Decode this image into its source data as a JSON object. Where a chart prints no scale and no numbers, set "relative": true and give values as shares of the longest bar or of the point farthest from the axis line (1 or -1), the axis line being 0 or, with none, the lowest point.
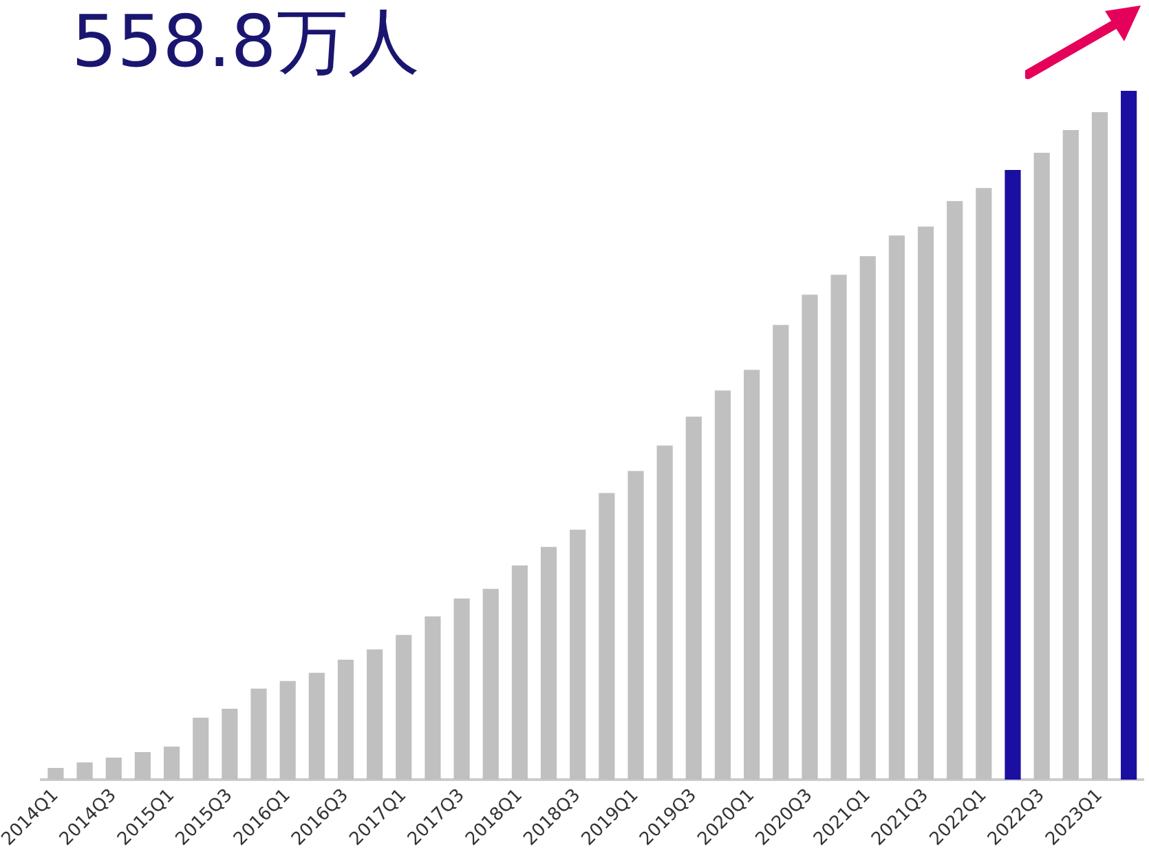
{
  "chart_data": {
    "type": "bar",
    "title": "558.8万人",
    "relative": true,
    "categories": [
      "2014Q1",
      null,
      "2014Q3",
      null,
      "2015Q1",
      null,
      "2015Q3",
      null,
      "2016Q1",
      null,
      "2016Q3",
      null,
      "2017Q1",
      null,
      "2017Q3",
      null,
      "2018Q1",
      null,
      "2018Q3",
      null,
      "2019Q1",
      null,
      "2019Q3",
      null,
      "2020Q1",
      null,
      "2020Q3",
      null,
      "2021Q1",
      null,
      "2021Q3",
      null,
      "2022Q1",
      null,
      "2022Q3",
      null,
      "2023Q1",
      null
    ],
    "values": [
      0.017,
      0.025,
      0.032,
      0.04,
      0.048,
      0.09,
      0.103,
      0.132,
      0.143,
      0.155,
      0.174,
      0.189,
      0.21,
      0.237,
      0.263,
      0.277,
      0.311,
      0.338,
      0.363,
      0.416,
      0.448,
      0.485,
      0.527,
      0.565,
      0.595,
      0.66,
      0.704,
      0.733,
      0.76,
      0.79,
      0.803,
      0.84,
      0.859,
      0.885,
      0.91,
      0.943,
      0.969,
      1
    ],
    "colors": [
      "#c0c0c0",
      "#c0c0c0",
      "#c0c0c0",
      "#c0c0c0",
      "#c0c0c0",
      "#c0c0c0",
      "#c0c0c0",
      "#c0c0c0",
      "#c0c0c0",
      "#c0c0c0",
      "#c0c0c0",
      "#c0c0c0",
      "#c0c0c0",
      "#c0c0c0",
      "#c0c0c0",
      "#c0c0c0",
      "#c0c0c0",
      "#c0c0c0",
      "#c0c0c0",
      "#c0c0c0",
      "#c0c0c0",
      "#c0c0c0",
      "#c0c0c0",
      "#c0c0c0",
      "#c0c0c0",
      "#c0c0c0",
      "#c0c0c0",
      "#c0c0c0",
      "#c0c0c0",
      "#c0c0c0",
      "#c0c0c0",
      "#c0c0c0",
      "#c0c0c0",
      "#1a0fa0",
      "#c0c0c0",
      "#c0c0c0",
      "#c0c0c0",
      "#1a0fa0"
    ],
    "grid": false,
    "legend": false
  }
}
